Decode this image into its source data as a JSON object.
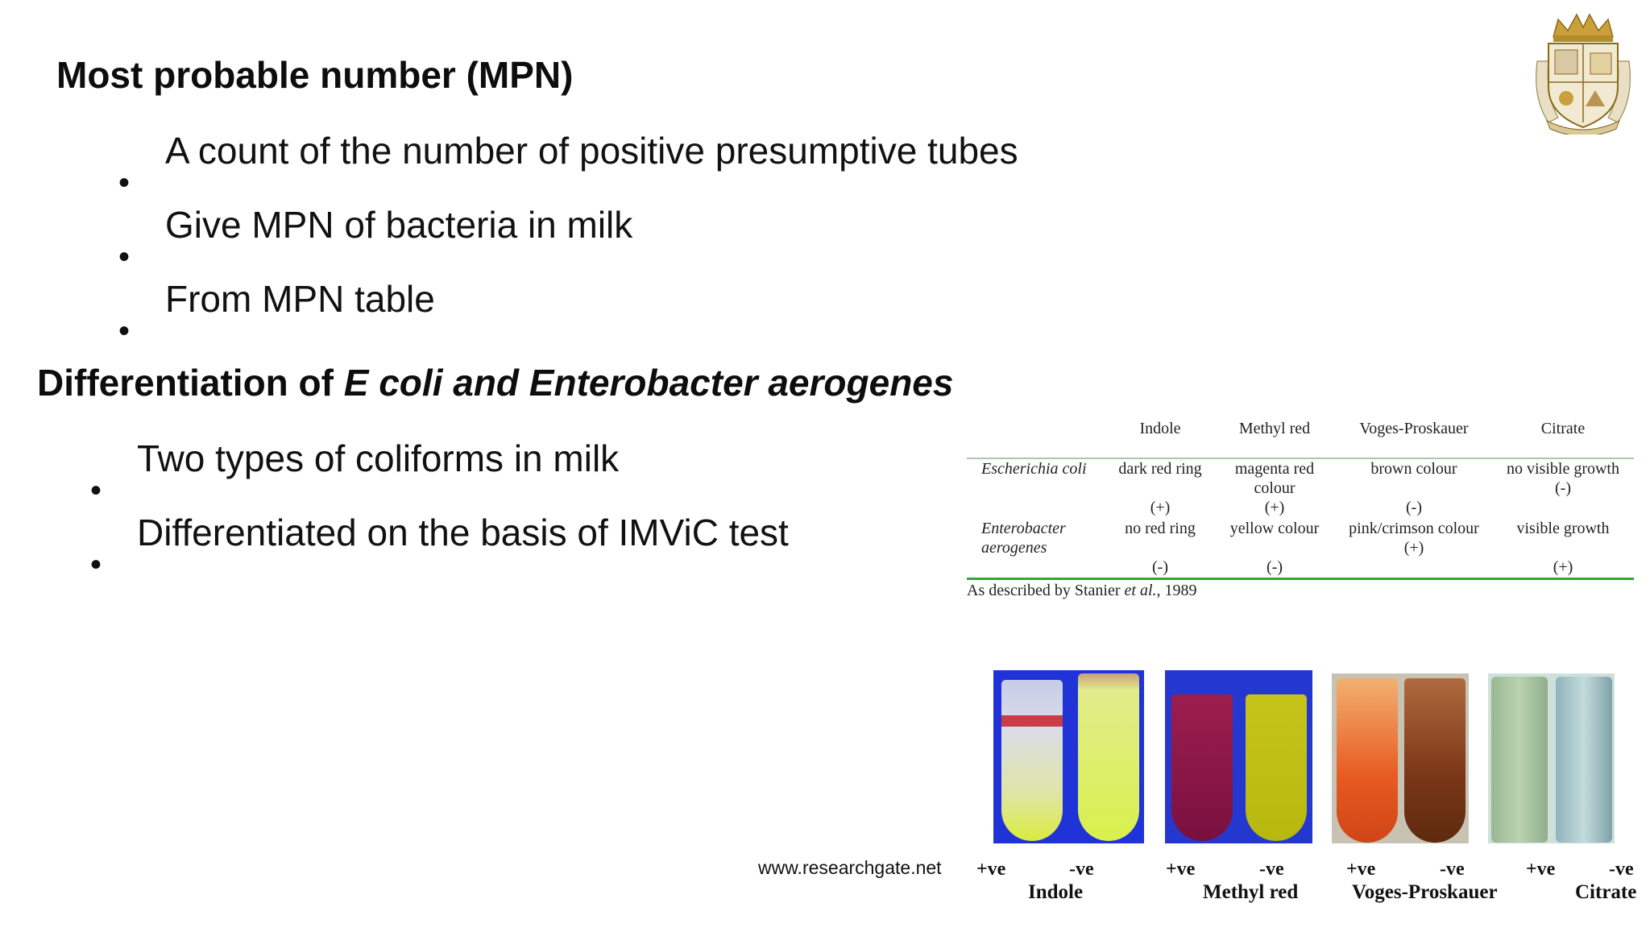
{
  "section1": {
    "title": "Most probable number (MPN)",
    "bullets": [
      "A count of the number of positive presumptive tubes",
      "Give MPN of bacteria in milk",
      "From MPN table"
    ]
  },
  "section2": {
    "title_plain": "Differentiation of ",
    "title_italic": "E coli and Enterobacter aerogenes",
    "bullets": [
      "Two types of coliforms in milk",
      "Differentiated on the basis of IMViC test"
    ]
  },
  "table": {
    "headers": [
      "Indole",
      "Methyl red",
      "Voges-Proskauer",
      "Citrate"
    ],
    "rows": [
      {
        "organism": [
          "Escherichia coli"
        ],
        "cells": [
          [
            "dark red ring",
            "(+)"
          ],
          [
            "magenta red",
            "colour",
            "(+)"
          ],
          [
            "brown colour",
            "(-)"
          ],
          [
            "no visible growth",
            "(-)"
          ]
        ]
      },
      {
        "organism": [
          "Enterobacter",
          "aerogenes"
        ],
        "cells": [
          [
            "no red ring",
            "(-)"
          ],
          [
            "yellow colour",
            "(-)"
          ],
          [
            "pink/crimson colour",
            "(+)"
          ],
          [
            "visible growth",
            "(+)"
          ]
        ]
      }
    ],
    "footnote_prefix": "As described by Stanier ",
    "footnote_italic": "et al.",
    "footnote_suffix": ", 1989",
    "rule_color": "#3aa33a"
  },
  "tests": [
    {
      "name": "Indole",
      "pos": "+ve",
      "neg": "-ve"
    },
    {
      "name": "Methyl red",
      "pos": "+ve",
      "neg": "-ve"
    },
    {
      "name": "Voges-Proskauer",
      "pos": "+ve",
      "neg": "-ve"
    },
    {
      "name": "Citrate",
      "pos": "+ve",
      "neg": "-ve"
    }
  ],
  "source": "www.researchgate.net",
  "logo": {
    "icon": "college-crest-icon"
  }
}
